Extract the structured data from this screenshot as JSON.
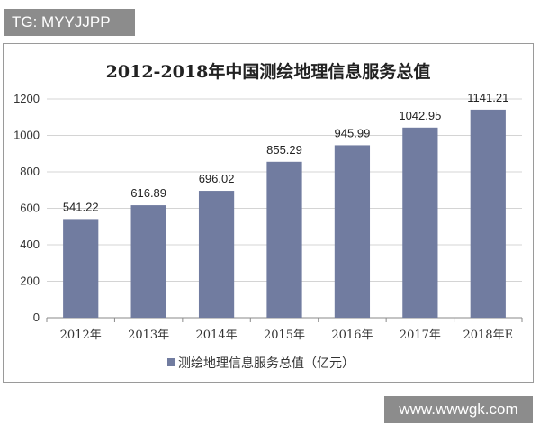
{
  "watermark_top": "TG: MYYJJPP",
  "watermark_bottom": "www.wwwgk.com",
  "chart_data": {
    "type": "bar",
    "title": "2012-2018年中国测绘地理信息服务总值",
    "categories": [
      "2012年",
      "2013年",
      "2014年",
      "2015年",
      "2016年",
      "2017年",
      "2018年E"
    ],
    "series": [
      {
        "name": "测绘地理信息服务总值（亿元）",
        "values": [
          541.22,
          616.89,
          696.02,
          855.29,
          945.99,
          1042.95,
          1141.21
        ],
        "labels": [
          "541.22",
          "616.89",
          "696.02",
          "855.29",
          "945.99",
          "1042.95",
          "1141.21"
        ]
      }
    ],
    "yticks": [
      "0",
      "200",
      "400",
      "600",
      "800",
      "1000",
      "1200"
    ],
    "ylim": [
      0,
      1200
    ],
    "grid": true,
    "legend_position": "bottom",
    "colors": {
      "bar": "#717ca0",
      "grid": "#d4d4d4",
      "axis": "#8a8a8a"
    }
  }
}
